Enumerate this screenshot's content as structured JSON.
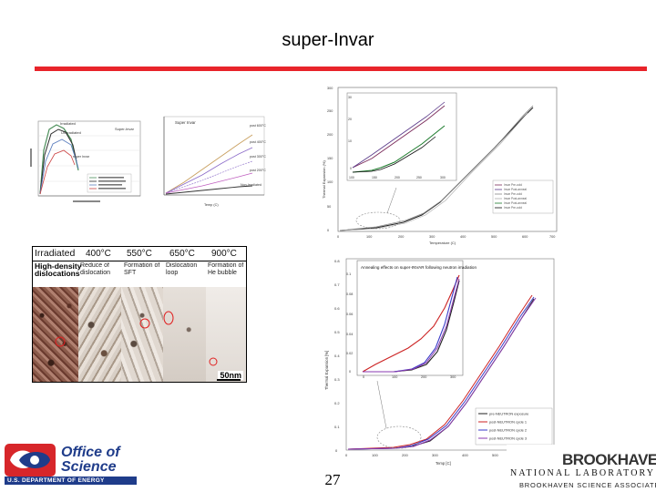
{
  "slide": {
    "title": "super-Invar",
    "page_number": "27"
  },
  "colors": {
    "accent_rule": "#e8242a",
    "doe_blue": "#1f3c8a",
    "doe_red": "#d7262a"
  },
  "chart_tl1": {
    "labels": [
      "Irradiated",
      "Unirradiated",
      "super Invar",
      "Super-Invar"
    ]
  },
  "chart_tl2": {
    "title": "Super Invar",
    "labels": [
      "post 600°C",
      "post 400°C",
      "post 300°C",
      "post 200°C",
      "Non-Irradiated"
    ],
    "xlabel": "Temp (C)"
  },
  "chart_tr": {
    "xlabel": "Temperature (C)",
    "ylabel": "Thermal Expansion (%)",
    "legend": [
      "Invar Pre-cold",
      "Invar Post-anneal",
      "Invar Pre-cold",
      "Invar Post-anneal",
      "Invar Post-anneal",
      "Invar Pre-cold"
    ],
    "x_ticks": [
      "0",
      "100",
      "200",
      "300",
      "400",
      "500",
      "600",
      "700"
    ],
    "y_ticks": [
      "0",
      "50",
      "100",
      "150",
      "200",
      "250",
      "300"
    ],
    "inset_x_ticks": [
      "100",
      "150",
      "200",
      "250",
      "300"
    ],
    "inset_y_ticks": [
      "0",
      "10",
      "20",
      "30"
    ]
  },
  "chart_br": {
    "title": "Annealing effects on super-INVAR following neutron irradiation",
    "xlabel": "Temp [C]",
    "ylabel": "Thermal Expansion [%]",
    "x_ticks": [
      "0",
      "100",
      "200",
      "300",
      "400",
      "500",
      "600",
      "700"
    ],
    "y_ticks": [
      "0",
      "0.1",
      "0.2",
      "0.3",
      "0.4",
      "0.5",
      "0.6",
      "0.7",
      "0.8"
    ],
    "inset_x_ticks": [
      "0",
      "100",
      "200",
      "300"
    ],
    "inset_y_ticks": [
      "0",
      "0.02",
      "0.04",
      "0.06",
      "0.08",
      "0.1"
    ],
    "legend": [
      "pre-NEUTRON exposure",
      "post-NEUTRON cycle 1",
      "post-NEUTRON cycle 2",
      "post-NEUTRON cycle 3"
    ]
  },
  "tem": {
    "headers": [
      "Irradiated",
      "400°C",
      "550°C",
      "650°C",
      "900°C"
    ],
    "captions": [
      "High-density dislocations",
      "Reduce of dislocation",
      "Formation of SFT",
      "Dislocation loop",
      "Formation of He bubble"
    ],
    "scale": "50nm"
  },
  "logos": {
    "doe_line1": "Office of",
    "doe_line2": "Science",
    "doe_line3": "U.S. DEPARTMENT OF ENERGY",
    "bnl_name": "BROOKHAVEN",
    "bnl_sub": "NATIONAL LABORATORY",
    "bnl_sci": "BROOKHAVEN SCIENCE ASSOCIATES"
  }
}
